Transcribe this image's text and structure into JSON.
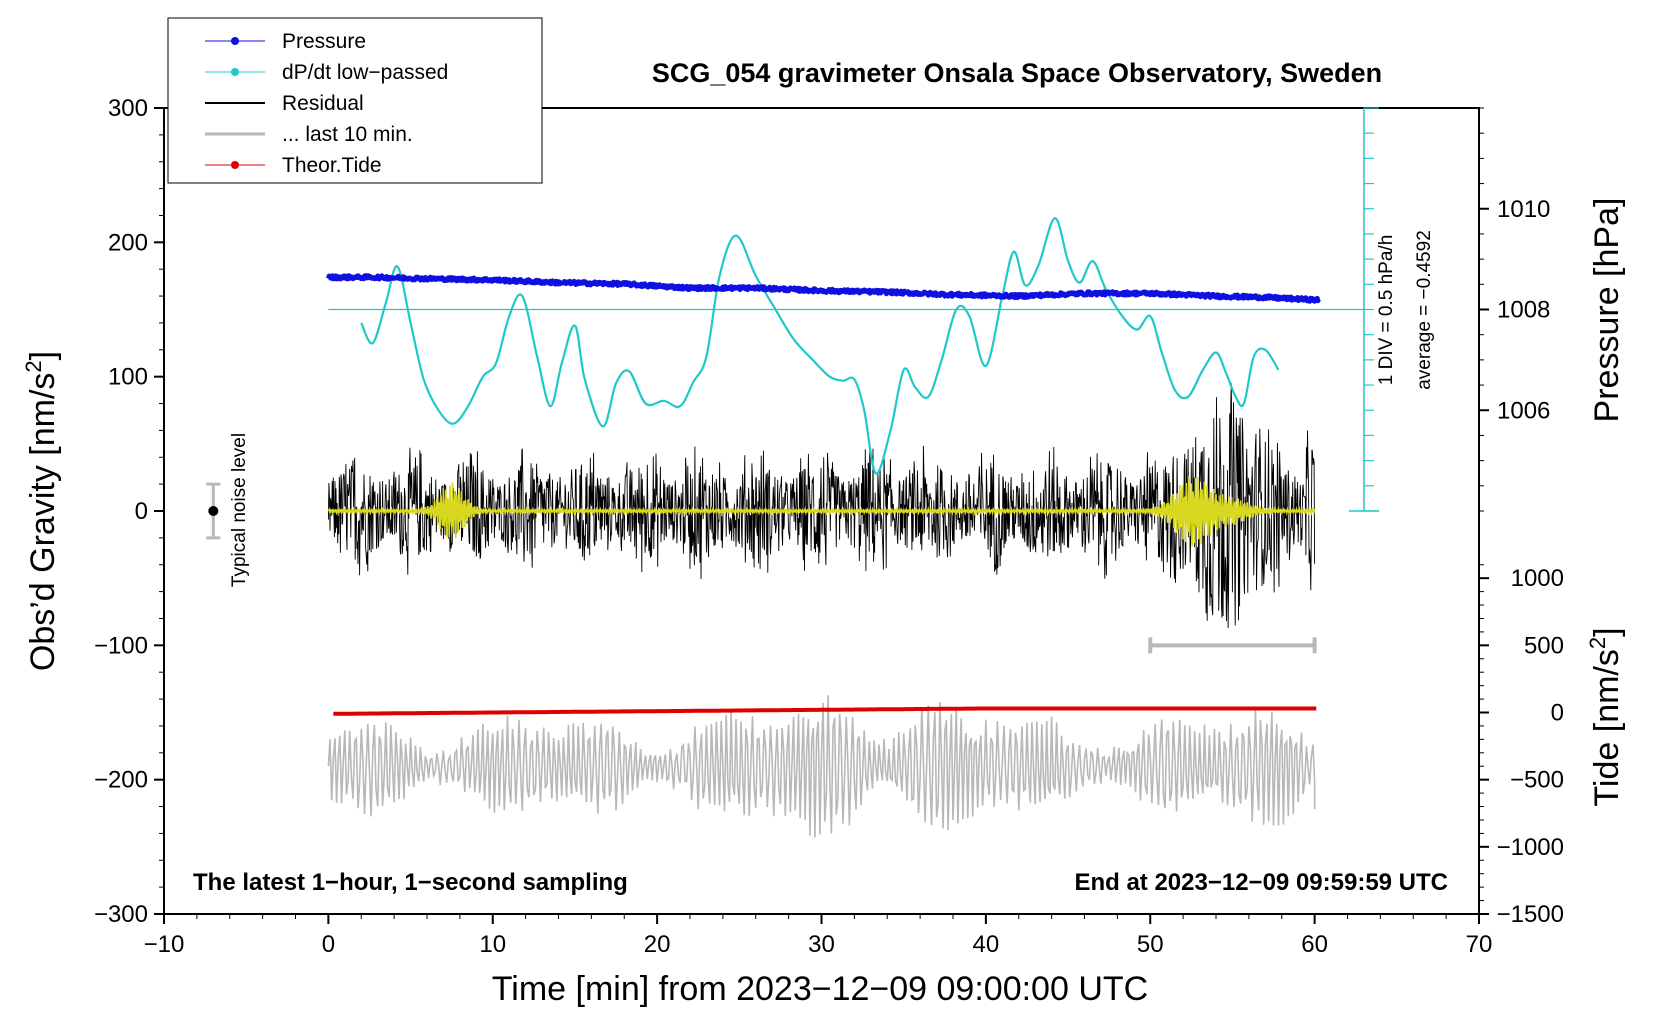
{
  "chart_data": {
    "type": "line",
    "title": "SCG_054 gravimeter Onsala Space Observatory, Sweden",
    "xlabel": "Time [min] from 2023−12−09 09:00:00 UTC",
    "ylabel_main": "Obs’d Gravity [nm/s",
    "ylabel_main_sup": "2",
    "ylabel_main_end": "]",
    "ylabel_pressure": "Pressure [hPa]",
    "ylabel_tide": "Tide [nm/s",
    "ylabel_tide_sup": "2",
    "ylabel_tide_end": "]",
    "xlim": [
      -10,
      70
    ],
    "ylim": [
      -300,
      300
    ],
    "x_ticks": [
      "−10",
      "0",
      "10",
      "20",
      "30",
      "40",
      "50",
      "60",
      "70"
    ],
    "x_tick_values": [
      -10,
      0,
      10,
      20,
      30,
      40,
      50,
      60,
      70
    ],
    "y_ticks": [
      "300",
      "200",
      "100",
      "0",
      "−100",
      "−200",
      "−300"
    ],
    "y_tick_values": [
      300,
      200,
      100,
      0,
      -100,
      -200,
      -300
    ],
    "pressure_axis": {
      "ticks": [
        "1010",
        "1008",
        "1006"
      ],
      "values": [
        1010,
        1008,
        1006
      ],
      "gravity_equivalent": [
        225,
        150,
        75
      ]
    },
    "tide_axis": {
      "ticks": [
        "1000",
        "500",
        "0",
        "−500",
        "−1000",
        "−1500"
      ],
      "values": [
        1000,
        500,
        0,
        -500,
        -1000,
        -1500
      ],
      "gravity_equivalent": [
        -50,
        -100,
        -150,
        -200,
        -250,
        -300
      ]
    },
    "legend": {
      "position": "top-left",
      "entries": [
        {
          "label": "Pressure",
          "color": "#1010e0",
          "marker": true
        },
        {
          "label": "dP/dt low−passed",
          "color": "#20c8c8",
          "marker": true
        },
        {
          "label": "Residual",
          "color": "#000000",
          "marker": false
        },
        {
          "label": "... last 10 min.",
          "color": "#b8b8b8",
          "marker": false
        },
        {
          "label": "Theor.Tide",
          "color": "#e00000",
          "marker": true
        }
      ]
    },
    "dpdt_scale": {
      "label": "1 DIV = 0.5 hPa/h",
      "average": "average = −0.4592",
      "x": 63,
      "y_top": 300,
      "y_bottom": 0,
      "baseline_y": 150
    },
    "noise_level": {
      "label": "Typical noise level",
      "x": -7,
      "y": 0,
      "error": 20
    },
    "window_bar": {
      "x_start": 50,
      "x_end": 60,
      "y": -100
    },
    "annotation_left": "The latest 1−hour, 1−second sampling",
    "annotation_right": "End at 2023−12−09 09:59:59 UTC",
    "series": [
      {
        "name": "Pressure",
        "color": "#1010e0",
        "x": [
          0,
          3,
          6,
          10,
          14,
          18,
          22,
          26,
          30,
          34,
          38,
          42,
          46,
          50,
          54,
          57,
          60.3
        ],
        "y": [
          174,
          174,
          173,
          172,
          170,
          169,
          166,
          166,
          164,
          163,
          161,
          160,
          162,
          162,
          160,
          159,
          157
        ]
      },
      {
        "name": "dP/dt low-passed",
        "color": "#20c8c8",
        "x": [
          2,
          2.7,
          3.5,
          4.2,
          5,
          5.8,
          6.7,
          7.6,
          8.5,
          9.4,
          10.2,
          11,
          11.8,
          12.7,
          13.5,
          14.2,
          15,
          15.6,
          16.7,
          17.5,
          18.3,
          19.3,
          20.4,
          21.4,
          22.2,
          23,
          23.8,
          24.8,
          26,
          27.2,
          28.3,
          29.5,
          30.5,
          31.3,
          32,
          32.6,
          33.3,
          34.2,
          35,
          35.7,
          36.5,
          37.3,
          38.2,
          39,
          40,
          41,
          41.7,
          42.4,
          43.2,
          44.2,
          45,
          45.7,
          46.5,
          47.3,
          48.3,
          49.2,
          50,
          50.7,
          51.5,
          52.3,
          53.2,
          54,
          54.6,
          55.2,
          55.7,
          56.3,
          57,
          57.8
        ],
        "y": [
          140,
          125,
          155,
          182,
          140,
          98,
          75,
          65,
          78,
          100,
          110,
          145,
          160,
          115,
          78,
          110,
          138,
          98,
          63,
          95,
          104,
          80,
          82,
          78,
          96,
          115,
          175,
          205,
          175,
          150,
          128,
          112,
          100,
          97,
          98,
          75,
          28,
          60,
          105,
          92,
          85,
          112,
          150,
          145,
          108,
          160,
          193,
          168,
          183,
          218,
          186,
          170,
          186,
          165,
          145,
          135,
          145,
          118,
          90,
          85,
          105,
          118,
          103,
          85,
          80,
          115,
          120,
          105
        ]
      },
      {
        "name": "Theor.Tide",
        "color": "#e00000",
        "x": [
          0.3,
          10,
          20,
          30,
          40,
          50,
          60.3
        ],
        "y": [
          -151,
          -150,
          -149,
          -148,
          -147,
          -147,
          -147
        ]
      }
    ]
  }
}
